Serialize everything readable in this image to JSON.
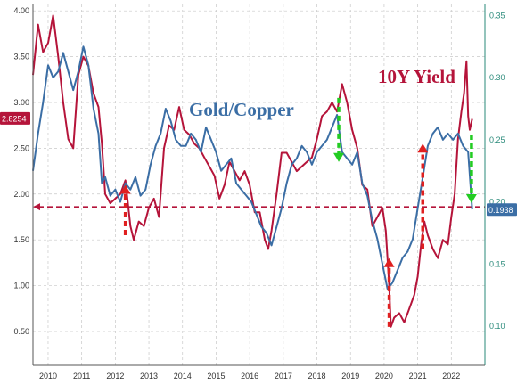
{
  "chart_data": {
    "type": "line",
    "title": "",
    "annotations": {
      "gold_copper_label": "Gold/Copper",
      "yield_label": "10Y Yield"
    },
    "colors": {
      "gold_copper": "#3b6ea5",
      "yield": "#b5143a",
      "up_arrow": "#e02020",
      "down_arrow": "#22cc22",
      "grid": "#c8c8c8"
    },
    "x_axis": {
      "range": [
        2009.55,
        2023.0
      ],
      "tick_labels": [
        "2010",
        "2011",
        "2012",
        "2013",
        "2014",
        "2015",
        "2016",
        "2017",
        "2018",
        "2019",
        "2020",
        "2021",
        "2022"
      ],
      "tick_positions": [
        2010,
        2011,
        2012,
        2013,
        2014,
        2015,
        2016,
        2017,
        2018,
        2019,
        2020,
        2021,
        2022
      ]
    },
    "y_left": {
      "range": [
        0.13,
        4.07
      ],
      "tick_labels": [
        "0.50",
        "1.00",
        "1.50",
        "2.00",
        "2.50",
        "3.00",
        "3.50",
        "4.00"
      ],
      "tick_values": [
        0.5,
        1.0,
        1.5,
        2.0,
        2.5,
        3.0,
        3.5,
        4.0
      ],
      "last_value_label": "2.8254",
      "last_value": 2.8254
    },
    "y_right": {
      "range": [
        0.0685,
        0.3589
      ],
      "tick_labels": [
        "0.10",
        "0.15",
        "0.20",
        "0.25",
        "0.30",
        "0.35"
      ],
      "tick_values": [
        0.1,
        0.15,
        0.2,
        0.25,
        0.3,
        0.35
      ],
      "last_value_label": "0.1938",
      "last_value": 0.1938
    },
    "reference_line": {
      "axis": "left",
      "value": 1.86
    },
    "series": [
      {
        "name": "10Y Yield",
        "axis": "left",
        "x": [
          2009.55,
          2009.7,
          2009.85,
          2010.0,
          2010.15,
          2010.3,
          2010.45,
          2010.6,
          2010.75,
          2010.9,
          2011.05,
          2011.2,
          2011.35,
          2011.5,
          2011.6,
          2011.7,
          2011.85,
          2012.0,
          2012.15,
          2012.3,
          2012.45,
          2012.55,
          2012.7,
          2012.85,
          2013.0,
          2013.15,
          2013.3,
          2013.45,
          2013.6,
          2013.75,
          2013.9,
          2014.05,
          2014.2,
          2014.35,
          2014.5,
          2014.65,
          2014.8,
          2014.95,
          2015.1,
          2015.25,
          2015.4,
          2015.55,
          2015.7,
          2015.85,
          2016.0,
          2016.15,
          2016.3,
          2016.45,
          2016.55,
          2016.65,
          2016.8,
          2016.95,
          2017.1,
          2017.25,
          2017.4,
          2017.55,
          2017.7,
          2017.85,
          2018.0,
          2018.15,
          2018.3,
          2018.45,
          2018.6,
          2018.75,
          2018.9,
          2019.05,
          2019.2,
          2019.35,
          2019.5,
          2019.65,
          2019.8,
          2019.95,
          2020.05,
          2020.15,
          2020.2,
          2020.3,
          2020.45,
          2020.6,
          2020.75,
          2020.9,
          2021.0,
          2021.1,
          2021.2,
          2021.3,
          2021.45,
          2021.6,
          2021.75,
          2021.9,
          2022.0,
          2022.1,
          2022.2,
          2022.3,
          2022.38,
          2022.45,
          2022.5,
          2022.55,
          2022.62
        ],
        "values": [
          3.3,
          3.85,
          3.55,
          3.65,
          3.95,
          3.5,
          3.0,
          2.6,
          2.5,
          3.3,
          3.5,
          3.4,
          3.1,
          2.95,
          2.55,
          2.0,
          1.9,
          1.95,
          2.0,
          2.15,
          1.65,
          1.5,
          1.7,
          1.65,
          1.85,
          1.95,
          1.75,
          2.5,
          2.75,
          2.7,
          2.95,
          2.7,
          2.65,
          2.55,
          2.5,
          2.4,
          2.3,
          2.2,
          1.95,
          2.1,
          2.35,
          2.25,
          2.15,
          2.25,
          2.1,
          1.8,
          1.8,
          1.5,
          1.4,
          1.6,
          2.0,
          2.45,
          2.45,
          2.35,
          2.25,
          2.3,
          2.35,
          2.4,
          2.6,
          2.85,
          2.9,
          3.0,
          2.9,
          3.2,
          3.0,
          2.7,
          2.5,
          2.1,
          2.05,
          1.65,
          1.75,
          1.85,
          1.6,
          1.0,
          0.55,
          0.65,
          0.7,
          0.6,
          0.75,
          0.9,
          1.1,
          1.45,
          1.7,
          1.55,
          1.4,
          1.3,
          1.5,
          1.45,
          1.75,
          2.0,
          2.6,
          2.9,
          3.1,
          3.45,
          2.85,
          2.7,
          2.82
        ]
      },
      {
        "name": "Gold/Copper",
        "axis": "right",
        "x": [
          2009.55,
          2009.7,
          2009.85,
          2010.0,
          2010.15,
          2010.3,
          2010.45,
          2010.6,
          2010.75,
          2010.9,
          2011.05,
          2011.2,
          2011.35,
          2011.5,
          2011.6,
          2011.7,
          2011.85,
          2012.0,
          2012.15,
          2012.3,
          2012.45,
          2012.6,
          2012.75,
          2012.9,
          2013.05,
          2013.2,
          2013.35,
          2013.5,
          2013.65,
          2013.8,
          2013.95,
          2014.1,
          2014.25,
          2014.4,
          2014.55,
          2014.7,
          2014.85,
          2015.0,
          2015.15,
          2015.3,
          2015.45,
          2015.6,
          2015.75,
          2015.9,
          2016.05,
          2016.2,
          2016.35,
          2016.5,
          2016.65,
          2016.8,
          2016.95,
          2017.1,
          2017.25,
          2017.4,
          2017.55,
          2017.7,
          2017.85,
          2018.0,
          2018.15,
          2018.3,
          2018.45,
          2018.6,
          2018.75,
          2018.9,
          2019.05,
          2019.2,
          2019.35,
          2019.5,
          2019.65,
          2019.8,
          2019.95,
          2020.1,
          2020.25,
          2020.4,
          2020.55,
          2020.7,
          2020.85,
          2021.0,
          2021.15,
          2021.3,
          2021.45,
          2021.6,
          2021.75,
          2021.9,
          2022.05,
          2022.2,
          2022.35,
          2022.5,
          2022.62
        ],
        "values": [
          0.225,
          0.255,
          0.28,
          0.31,
          0.3,
          0.305,
          0.32,
          0.305,
          0.29,
          0.305,
          0.325,
          0.31,
          0.275,
          0.255,
          0.215,
          0.22,
          0.205,
          0.21,
          0.2,
          0.215,
          0.21,
          0.22,
          0.205,
          0.21,
          0.23,
          0.245,
          0.255,
          0.275,
          0.265,
          0.25,
          0.245,
          0.245,
          0.255,
          0.25,
          0.24,
          0.26,
          0.25,
          0.24,
          0.225,
          0.23,
          0.235,
          0.215,
          0.21,
          0.205,
          0.2,
          0.19,
          0.18,
          0.175,
          0.165,
          0.18,
          0.195,
          0.215,
          0.23,
          0.235,
          0.245,
          0.24,
          0.23,
          0.24,
          0.245,
          0.25,
          0.26,
          0.27,
          0.24,
          0.235,
          0.23,
          0.24,
          0.215,
          0.205,
          0.185,
          0.17,
          0.15,
          0.13,
          0.135,
          0.145,
          0.155,
          0.16,
          0.17,
          0.195,
          0.22,
          0.245,
          0.255,
          0.26,
          0.25,
          0.255,
          0.25,
          0.255,
          0.245,
          0.24,
          0.194
        ]
      }
    ],
    "markers": [
      {
        "kind": "up",
        "x": 2012.3,
        "y_from": 1.55,
        "y_to": 2.1
      },
      {
        "kind": "up",
        "x": 2020.15,
        "y_from": 0.55,
        "y_to": 1.3
      },
      {
        "kind": "up",
        "x": 2021.15,
        "y_from": 1.4,
        "y_to": 2.55
      },
      {
        "kind": "down",
        "x": 2018.65,
        "y_from": 3.05,
        "y_to": 2.35
      },
      {
        "kind": "down",
        "x": 2022.6,
        "y_from": 2.65,
        "y_to": 1.9
      }
    ]
  }
}
